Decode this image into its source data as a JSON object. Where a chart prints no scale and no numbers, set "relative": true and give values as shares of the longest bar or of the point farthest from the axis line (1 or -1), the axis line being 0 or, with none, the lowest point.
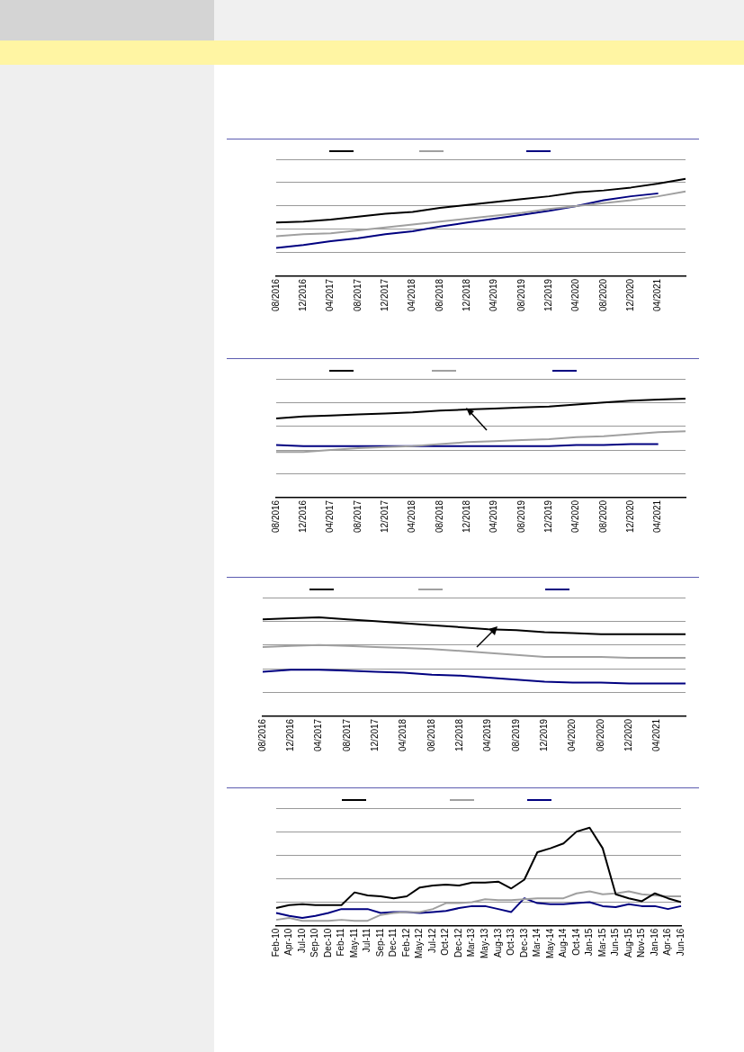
{
  "chart_data": [
    {
      "type": "line",
      "relative": true,
      "grid": "y",
      "marker": "none",
      "categories": [
        "08/2016",
        "12/2016",
        "04/2017",
        "08/2017",
        "12/2017",
        "04/2018",
        "08/2018",
        "12/2018",
        "04/2019",
        "08/2019",
        "12/2019",
        "04/2020",
        "08/2020",
        "12/2020",
        "04/2021",
        null
      ],
      "series": [
        {
          "color": "#000000",
          "values": [
            0.55,
            0.56,
            0.58,
            0.61,
            0.64,
            0.66,
            0.7,
            0.73,
            0.76,
            0.79,
            0.82,
            0.86,
            0.88,
            0.91,
            0.95,
            1
          ]
        },
        {
          "color": "#a0a0a0",
          "values": [
            0.41,
            0.43,
            0.44,
            0.47,
            0.5,
            0.53,
            0.56,
            0.59,
            0.62,
            0.65,
            0.69,
            0.72,
            0.75,
            0.78,
            0.82,
            0.87
          ]
        },
        {
          "color": "#000080",
          "values": [
            0.29,
            0.32,
            0.36,
            0.39,
            0.43,
            0.46,
            0.51,
            0.55,
            0.59,
            0.63,
            0.67,
            0.72,
            0.78,
            0.82,
            0.85,
            null
          ]
        }
      ]
    },
    {
      "type": "line",
      "relative": true,
      "grid": "y",
      "marker": "none",
      "categories": [
        "08/2016",
        "12/2016",
        "04/2017",
        "08/2017",
        "12/2017",
        "04/2018",
        "08/2018",
        "12/2018",
        "04/2019",
        "08/2019",
        "12/2019",
        "04/2020",
        "08/2020",
        "12/2020",
        "04/2021",
        null
      ],
      "series": [
        {
          "color": "#000000",
          "values": [
            0.8,
            0.82,
            0.83,
            0.84,
            0.85,
            0.86,
            0.88,
            0.89,
            0.9,
            0.91,
            0.92,
            0.94,
            0.96,
            0.98,
            0.99,
            1
          ]
        },
        {
          "color": "#a0a0a0",
          "values": [
            0.46,
            0.46,
            0.48,
            0.5,
            0.51,
            0.52,
            0.54,
            0.56,
            0.57,
            0.58,
            0.59,
            0.61,
            0.62,
            0.64,
            0.66,
            0.67
          ]
        },
        {
          "color": "#000080",
          "values": [
            0.53,
            0.52,
            0.52,
            0.52,
            0.52,
            0.52,
            0.52,
            0.52,
            0.52,
            0.52,
            0.52,
            0.53,
            0.53,
            0.54,
            0.54,
            null
          ]
        }
      ]
    },
    {
      "type": "line",
      "relative": true,
      "grid": "y",
      "marker": "none",
      "categories": [
        "08/2016",
        "12/2016",
        "04/2017",
        "08/2017",
        "12/2017",
        "04/2018",
        "08/2018",
        "12/2018",
        "04/2019",
        "08/2019",
        "12/2019",
        "04/2020",
        "08/2020",
        "12/2020",
        "04/2021",
        null
      ],
      "series": [
        {
          "color": "#000000",
          "values": [
            0.98,
            0.99,
            1,
            0.98,
            0.96,
            0.94,
            0.92,
            0.9,
            0.88,
            0.87,
            0.85,
            0.84,
            0.83,
            0.83,
            0.83,
            0.83
          ]
        },
        {
          "color": "#a0a0a0",
          "values": [
            0.7,
            0.71,
            0.72,
            0.71,
            0.7,
            0.69,
            0.68,
            0.66,
            0.64,
            0.62,
            0.6,
            0.6,
            0.6,
            0.59,
            0.59,
            0.59
          ]
        },
        {
          "color": "#000080",
          "values": [
            0.45,
            0.47,
            0.47,
            0.46,
            0.45,
            0.44,
            0.42,
            0.41,
            0.39,
            0.37,
            0.35,
            0.34,
            0.34,
            0.33,
            0.33,
            0.33
          ]
        }
      ]
    },
    {
      "type": "line",
      "relative": true,
      "grid": "y",
      "marker": "none",
      "categories": [
        "Feb-10",
        "Apr-10",
        "Jul-10",
        "Sep-10",
        "Dec-10",
        "Feb-11",
        "May-11",
        "Jul-11",
        "Sep-11",
        "Dec-11",
        "Feb-12",
        "May-12",
        "Jul-12",
        "Oct-12",
        "Dec-12",
        "Mar-13",
        "May-13",
        "Aug-13",
        "Oct-13",
        "Dec-13",
        "Mar-14",
        "May-14",
        "Aug-14",
        "Oct-14",
        "Jan-15",
        "Mar-15",
        "Jun-15",
        "Aug-15",
        "Nov-15",
        "Jan-16",
        "Apr-16",
        "Jun-16"
      ],
      "series": [
        {
          "color": "#000000",
          "values": [
            0.18,
            0.21,
            0.22,
            0.21,
            0.21,
            0.21,
            0.34,
            0.31,
            0.3,
            0.28,
            0.3,
            0.39,
            0.41,
            0.42,
            0.41,
            0.44,
            0.44,
            0.45,
            0.38,
            0.47,
            0.75,
            0.79,
            0.84,
            0.96,
            1,
            0.79,
            0.32,
            0.28,
            0.25,
            0.33,
            0.28,
            0.24
          ]
        },
        {
          "color": "#a0a0a0",
          "values": [
            0.06,
            0.08,
            0.05,
            0.05,
            0.05,
            0.06,
            0.05,
            0.05,
            0.11,
            0.13,
            0.14,
            0.14,
            0.17,
            0.23,
            0.23,
            0.24,
            0.27,
            0.26,
            0.26,
            0.27,
            0.28,
            0.28,
            0.28,
            0.33,
            0.35,
            0.32,
            0.33,
            0.35,
            0.32,
            0.31,
            0.3,
            0.3
          ]
        },
        {
          "color": "#000080",
          "values": [
            0.13,
            0.1,
            0.08,
            0.1,
            0.13,
            0.17,
            0.17,
            0.17,
            0.13,
            0.14,
            0.14,
            0.13,
            0.14,
            0.15,
            0.18,
            0.2,
            0.2,
            0.17,
            0.14,
            0.28,
            0.23,
            0.22,
            0.22,
            0.23,
            0.24,
            0.2,
            0.19,
            0.22,
            0.2,
            0.2,
            0.17,
            0.2
          ]
        }
      ]
    }
  ]
}
